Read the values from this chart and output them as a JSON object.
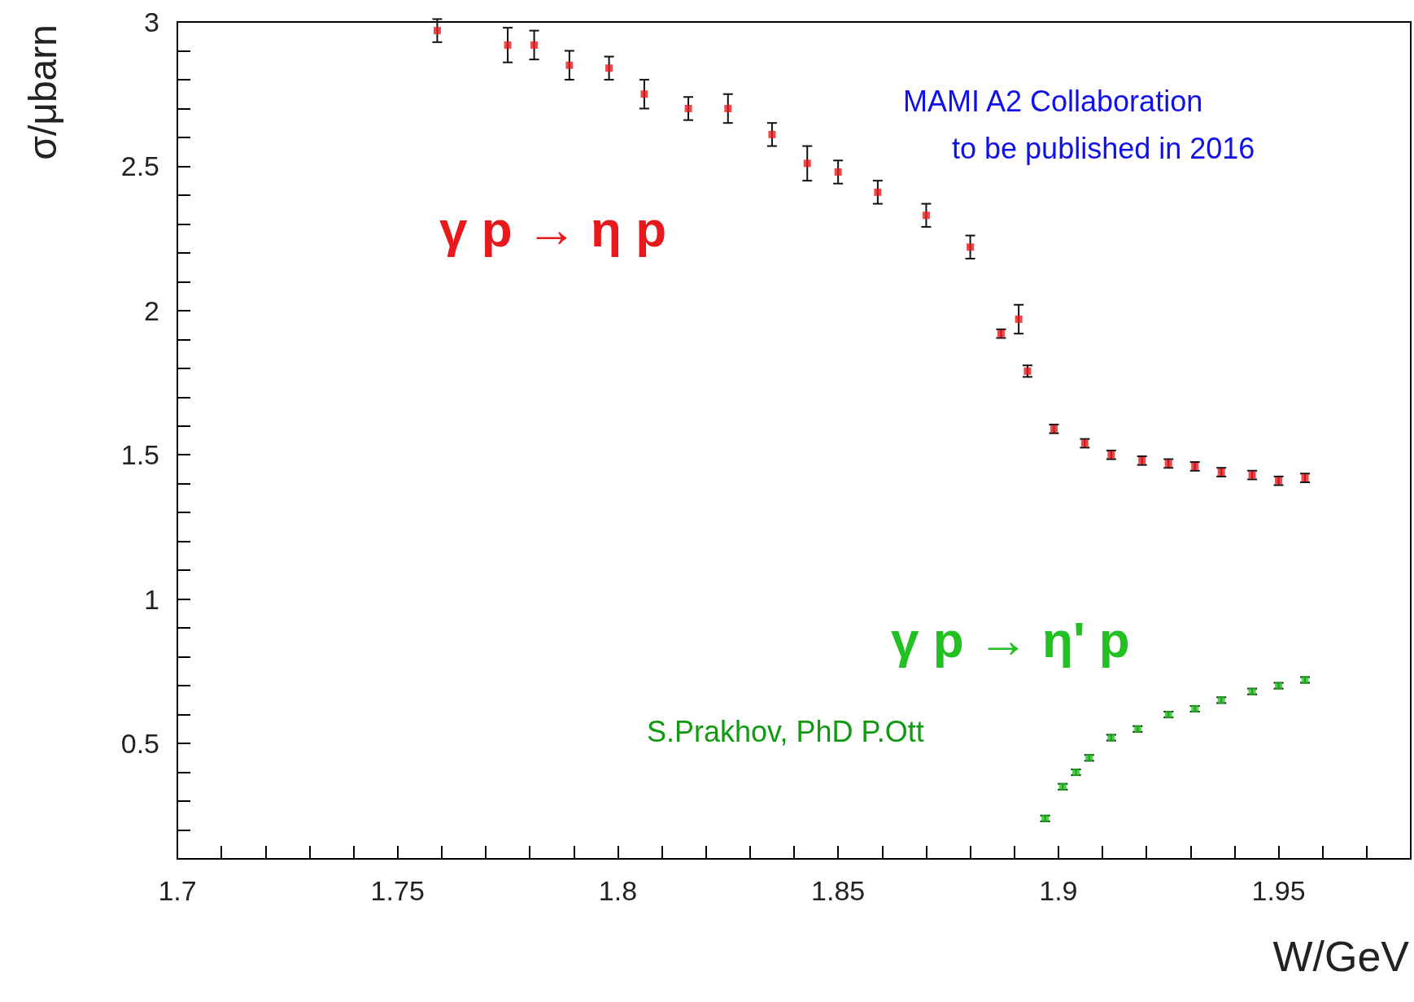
{
  "chart_data": {
    "type": "scatter",
    "xlabel": "W/GeV",
    "ylabel": "σ/μbarn",
    "annotations": [
      "MAMI A2 Collaboration\n      to be published in 2016",
      "S.Prakhov, PhD P.Ott"
    ],
    "xlim": [
      1.7,
      1.98
    ],
    "ylim": [
      0.1,
      3
    ],
    "xticks": [
      1.7,
      {
        "value": 1.71,
        "label": null
      },
      {
        "value": 1.72,
        "label": null
      },
      {
        "value": 1.73,
        "label": null
      },
      {
        "value": 1.74,
        "label": null
      },
      1.75,
      {
        "value": 1.76,
        "label": null
      },
      {
        "value": 1.77,
        "label": null
      },
      {
        "value": 1.78,
        "label": null
      },
      {
        "value": 1.79,
        "label": null
      },
      1.8,
      {
        "value": 1.81,
        "label": null
      },
      {
        "value": 1.82,
        "label": null
      },
      {
        "value": 1.83,
        "label": null
      },
      {
        "value": 1.84,
        "label": null
      },
      1.85,
      {
        "value": 1.86,
        "label": null
      },
      {
        "value": 1.87,
        "label": null
      },
      {
        "value": 1.88,
        "label": null
      },
      {
        "value": 1.89,
        "label": null
      },
      1.9,
      {
        "value": 1.91,
        "label": null
      },
      {
        "value": 1.92,
        "label": null
      },
      {
        "value": 1.93,
        "label": null
      },
      {
        "value": 1.94,
        "label": null
      },
      1.95,
      {
        "value": 1.96,
        "label": null
      },
      {
        "value": 1.97,
        "label": null
      }
    ],
    "yticks": [
      {
        "value": 0.2,
        "label": null
      },
      {
        "value": 0.3,
        "label": null
      },
      {
        "value": 0.4,
        "label": null
      },
      0.5,
      {
        "value": 0.6,
        "label": null
      },
      {
        "value": 0.7,
        "label": null
      },
      {
        "value": 0.8,
        "label": null
      },
      {
        "value": 0.9,
        "label": null
      },
      1,
      {
        "value": 1.1,
        "label": null
      },
      {
        "value": 1.2,
        "label": null
      },
      {
        "value": 1.3,
        "label": null
      },
      {
        "value": 1.4,
        "label": null
      },
      1.5,
      {
        "value": 1.6,
        "label": null
      },
      {
        "value": 1.7,
        "label": null
      },
      {
        "value": 1.8,
        "label": null
      },
      {
        "value": 1.9,
        "label": null
      },
      2,
      {
        "value": 2.1,
        "label": null
      },
      {
        "value": 2.2,
        "label": null
      },
      {
        "value": 2.3,
        "label": null
      },
      {
        "value": 2.4,
        "label": null
      },
      2.5,
      {
        "value": 2.6,
        "label": null
      },
      {
        "value": 2.7,
        "label": null
      },
      {
        "value": 2.8,
        "label": null
      },
      {
        "value": 2.9,
        "label": null
      },
      3
    ],
    "grid": false,
    "legend": false,
    "marker": "square",
    "series": [
      {
        "name": "γ p → η p",
        "color": "#e8191c",
        "x": [
          1.759,
          1.775,
          1.781,
          1.789,
          1.798,
          1.806,
          1.816,
          1.825,
          1.835,
          1.843,
          1.85,
          1.859,
          1.87,
          1.88,
          1.887,
          1.891,
          1.893,
          1.899,
          1.906,
          1.912,
          1.919,
          1.925,
          1.931,
          1.937,
          1.944,
          1.95,
          1.956
        ],
        "values": [
          2.97,
          2.92,
          2.92,
          2.85,
          2.84,
          2.75,
          2.7,
          2.7,
          2.61,
          2.51,
          2.48,
          2.41,
          2.33,
          2.22,
          1.92,
          1.97,
          1.79,
          1.59,
          1.54,
          1.5,
          1.48,
          1.47,
          1.46,
          1.44,
          1.43,
          1.41,
          1.42
        ],
        "errors": [
          0.04,
          0.06,
          0.05,
          0.05,
          0.04,
          0.05,
          0.04,
          0.05,
          0.04,
          0.06,
          0.04,
          0.04,
          0.04,
          0.04,
          0.015,
          0.05,
          0.02,
          0.015,
          0.015,
          0.015,
          0.015,
          0.015,
          0.015,
          0.015,
          0.015,
          0.015,
          0.015
        ]
      },
      {
        "name": "γ p → η' p",
        "color": "#22c022",
        "x": [
          1.897,
          1.901,
          1.904,
          1.907,
          1.912,
          1.918,
          1.925,
          1.931,
          1.937,
          1.944,
          1.95,
          1.956
        ],
        "values": [
          0.24,
          0.35,
          0.4,
          0.45,
          0.52,
          0.55,
          0.6,
          0.62,
          0.65,
          0.68,
          0.7,
          0.72
        ],
        "errors": [
          0.01,
          0.01,
          0.01,
          0.01,
          0.01,
          0.01,
          0.01,
          0.01,
          0.01,
          0.01,
          0.01,
          0.01
        ]
      }
    ]
  }
}
